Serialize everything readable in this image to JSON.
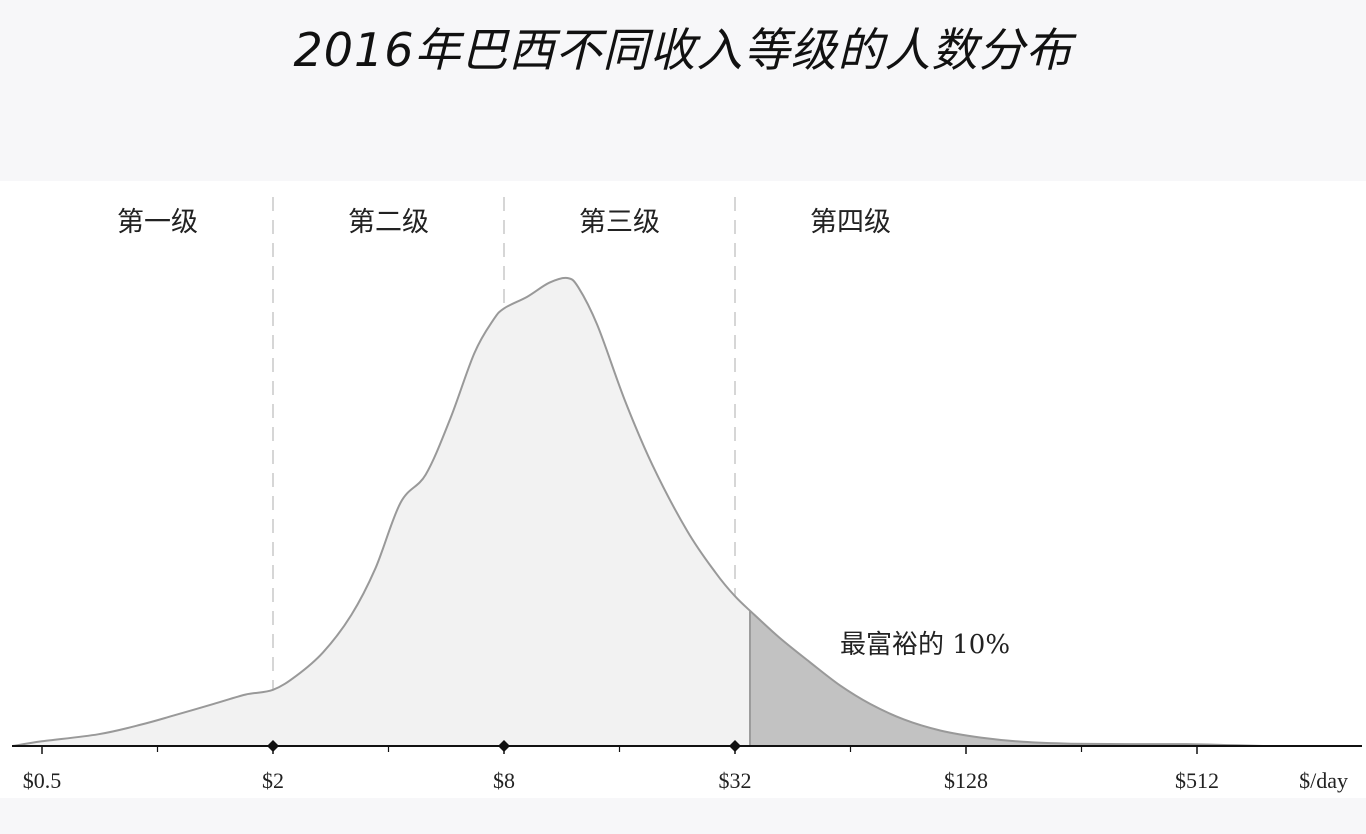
{
  "title": "2016年巴西不同收入等级的人数分布",
  "chart_data": {
    "type": "area",
    "title": "2016年巴西不同收入等级的人数分布",
    "x_scale": "log2",
    "x_unit_label": "$/day",
    "xlim": [
      0.42,
      900
    ],
    "ticks": [
      {
        "value": 0.5,
        "label": "$0.5"
      },
      {
        "value": 2,
        "label": "$2"
      },
      {
        "value": 8,
        "label": "$8"
      },
      {
        "value": 32,
        "label": "$32"
      },
      {
        "value": 128,
        "label": "$128"
      },
      {
        "value": 512,
        "label": "$512"
      }
    ],
    "minor_ticks": [
      1,
      4,
      16,
      64,
      256
    ],
    "level_boundaries": [
      2,
      8,
      32
    ],
    "levels": [
      "第一级",
      "第二级",
      "第三级",
      "第四级"
    ],
    "series": [
      {
        "points": [
          [
            0.42,
            0.0
          ],
          [
            0.5,
            0.01
          ],
          [
            0.7,
            0.025
          ],
          [
            0.9,
            0.045
          ],
          [
            1.1,
            0.065
          ],
          [
            1.4,
            0.09
          ],
          [
            1.7,
            0.11
          ],
          [
            2.0,
            0.12
          ],
          [
            2.3,
            0.15
          ],
          [
            2.7,
            0.2
          ],
          [
            3.2,
            0.28
          ],
          [
            3.7,
            0.38
          ],
          [
            4.3,
            0.52
          ],
          [
            5.0,
            0.58
          ],
          [
            5.8,
            0.7
          ],
          [
            6.7,
            0.84
          ],
          [
            7.5,
            0.91
          ],
          [
            8.0,
            0.935
          ],
          [
            9.2,
            0.96
          ],
          [
            10.5,
            0.99
          ],
          [
            11.7,
            1.0
          ],
          [
            12.5,
            0.98
          ],
          [
            14.0,
            0.9
          ],
          [
            16.5,
            0.74
          ],
          [
            19.5,
            0.6
          ],
          [
            24.0,
            0.46
          ],
          [
            28.5,
            0.37
          ],
          [
            32.0,
            0.32
          ],
          [
            36.0,
            0.28
          ],
          [
            42.0,
            0.23
          ],
          [
            50.0,
            0.18
          ],
          [
            60.0,
            0.13
          ],
          [
            72.0,
            0.09
          ],
          [
            88.0,
            0.057
          ],
          [
            110.0,
            0.033
          ],
          [
            140.0,
            0.018
          ],
          [
            180.0,
            0.009
          ],
          [
            240.0,
            0.005
          ],
          [
            340.0,
            0.004
          ],
          [
            480.0,
            0.004
          ],
          [
            620.0,
            0.002
          ],
          [
            760.0,
            0.0
          ]
        ]
      }
    ],
    "highlight": {
      "from": 35,
      "label": "最富裕的 10%"
    },
    "colors": {
      "fill": "#f2f2f2",
      "line": "#999999",
      "highlight": "#c2c2c2",
      "axis": "#111111",
      "boundary": "#d6d6d6"
    }
  }
}
